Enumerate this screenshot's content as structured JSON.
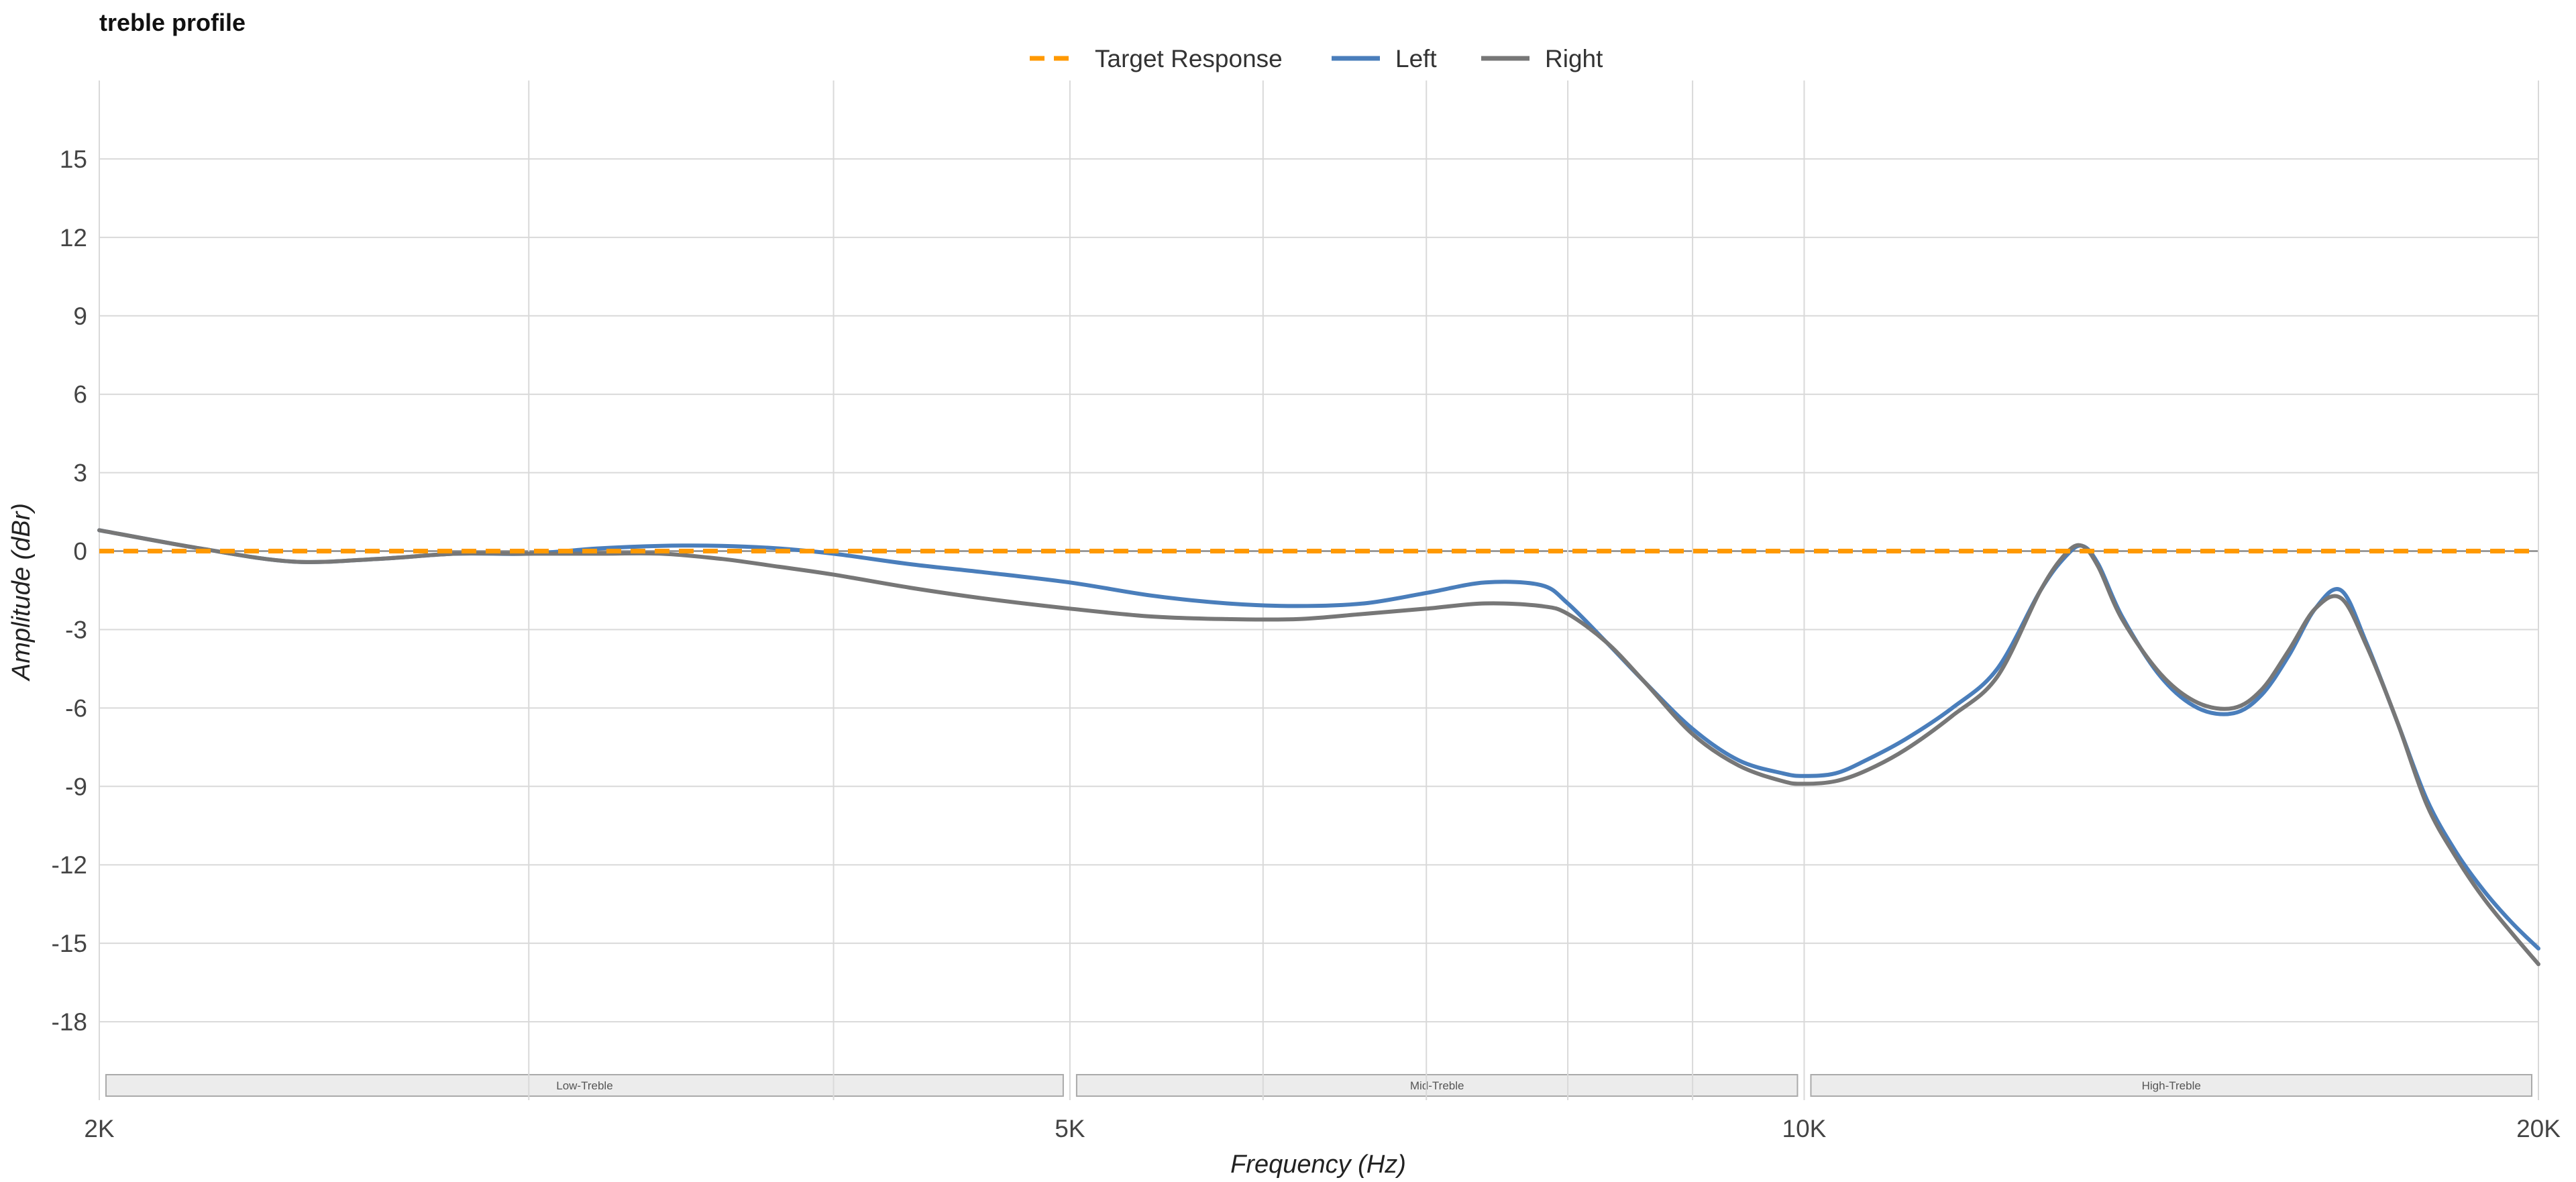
{
  "chart_data": {
    "type": "line",
    "title": "treble profile",
    "xlabel": "Frequency (Hz)",
    "ylabel": "Amplitude (dBr)",
    "x_scale": "log",
    "xlim": [
      2000,
      20000
    ],
    "ylim": [
      -21,
      18
    ],
    "grid": true,
    "legend_position": "top-center",
    "x_tick_labels": [
      {
        "value": 2000,
        "label": "2K"
      },
      {
        "value": 5000,
        "label": "5K"
      },
      {
        "value": 10000,
        "label": "10K"
      },
      {
        "value": 20000,
        "label": "20K"
      }
    ],
    "x_gridlines": [
      2000,
      3000,
      4000,
      5000,
      6000,
      7000,
      8000,
      9000,
      10000,
      20000
    ],
    "y_ticks": [
      15,
      12,
      9,
      6,
      3,
      0,
      -3,
      -6,
      -9,
      -12,
      -15,
      -18
    ],
    "bands": [
      {
        "label": "Low-Treble",
        "from": 2000,
        "to": 5000
      },
      {
        "label": "Mid-Treble",
        "from": 5000,
        "to": 10000
      },
      {
        "label": "High-Treble",
        "from": 10000,
        "to": 20000
      }
    ],
    "series": [
      {
        "name": "Target Response",
        "color": "#ff9900",
        "dashed": true,
        "x": [
          2000,
          20000
        ],
        "y": [
          0,
          0
        ]
      },
      {
        "name": "Left",
        "color": "#4a7ebb",
        "dashed": false,
        "x": [
          2000,
          2200,
          2400,
          2600,
          2800,
          3000,
          3200,
          3400,
          3600,
          3800,
          4000,
          4300,
          4600,
          5000,
          5400,
          5800,
          6200,
          6600,
          7000,
          7400,
          7800,
          8000,
          8300,
          8600,
          9000,
          9400,
          9800,
          10000,
          10300,
          10600,
          11000,
          11500,
          12000,
          12500,
          12800,
          13000,
          13200,
          13500,
          14000,
          14500,
          15000,
          15400,
          15800,
          16200,
          16600,
          17000,
          17500,
          18000,
          18500,
          19000,
          19500,
          20000
        ],
        "y": [
          0.8,
          0.1,
          -0.4,
          -0.3,
          -0.1,
          -0.1,
          0.1,
          0.2,
          0.2,
          0.1,
          -0.1,
          -0.5,
          -0.8,
          -1.2,
          -1.7,
          -2.0,
          -2.1,
          -2.0,
          -1.6,
          -1.2,
          -1.3,
          -2.0,
          -3.5,
          -5.0,
          -6.8,
          -8.0,
          -8.5,
          -8.6,
          -8.5,
          -8.0,
          -7.2,
          -6.0,
          -4.5,
          -1.5,
          -0.2,
          0.2,
          -0.5,
          -2.5,
          -4.8,
          -6.0,
          -6.2,
          -5.5,
          -4.0,
          -2.2,
          -1.5,
          -3.5,
          -6.5,
          -9.5,
          -11.5,
          -13.0,
          -14.2,
          -15.2
        ]
      },
      {
        "name": "Right",
        "color": "#777777",
        "dashed": false,
        "x": [
          2000,
          2200,
          2400,
          2600,
          2800,
          3000,
          3200,
          3400,
          3600,
          3800,
          4000,
          4300,
          4600,
          5000,
          5400,
          5800,
          6200,
          6600,
          7000,
          7400,
          7800,
          8000,
          8300,
          8600,
          9000,
          9400,
          9800,
          10000,
          10300,
          10600,
          11000,
          11500,
          12000,
          12500,
          12800,
          13000,
          13200,
          13500,
          14000,
          14500,
          15000,
          15400,
          15800,
          16200,
          16600,
          17000,
          17500,
          18000,
          18500,
          19000,
          19500,
          20000
        ],
        "y": [
          0.8,
          0.1,
          -0.4,
          -0.3,
          -0.1,
          -0.1,
          -0.1,
          -0.1,
          -0.3,
          -0.6,
          -0.9,
          -1.4,
          -1.8,
          -2.2,
          -2.5,
          -2.6,
          -2.6,
          -2.4,
          -2.2,
          -2.0,
          -2.1,
          -2.4,
          -3.5,
          -5.0,
          -7.0,
          -8.2,
          -8.8,
          -8.9,
          -8.8,
          -8.4,
          -7.6,
          -6.3,
          -4.8,
          -1.5,
          -0.1,
          0.2,
          -0.6,
          -2.6,
          -4.7,
          -5.8,
          -6.0,
          -5.3,
          -3.8,
          -2.2,
          -1.8,
          -3.6,
          -6.5,
          -9.7,
          -11.7,
          -13.3,
          -14.6,
          -15.8
        ]
      }
    ]
  }
}
